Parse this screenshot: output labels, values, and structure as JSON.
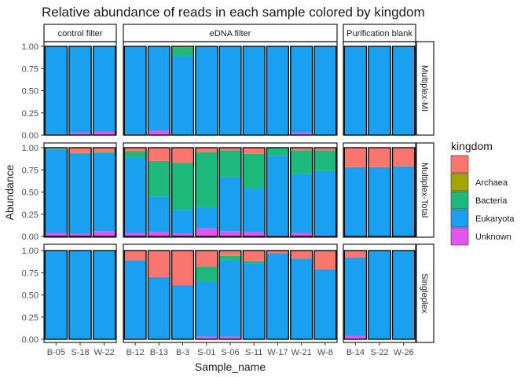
{
  "chart_data": {
    "type": "bar",
    "title": "Relative abundance of reads in each sample colored by kingdom",
    "xlabel": "Sample_name",
    "ylabel": "Abundance",
    "ylim": [
      0,
      1
    ],
    "yticks": [
      "0.00",
      "0.25",
      "0.50",
      "0.75",
      "1.00"
    ],
    "legend": {
      "title": "kingdom",
      "placement": "right",
      "entries": [
        {
          "key": "NA",
          "label": "",
          "color": "#F8766D"
        },
        {
          "key": "Archaea",
          "label": "Archaea",
          "color": "#A3A500"
        },
        {
          "key": "Bacteria",
          "label": "Bacteria",
          "color": "#1DB97A"
        },
        {
          "key": "Eukaryota",
          "label": "Eukaryota",
          "color": "#19A0F0"
        },
        {
          "key": "Unknown",
          "label": "Unknown",
          "color": "#E455F0"
        }
      ]
    },
    "stack_order": [
      "Unknown",
      "Eukaryota",
      "Bacteria",
      "Archaea",
      "NA"
    ],
    "column_facets": [
      {
        "label": "control filter",
        "samples": [
          "B-05",
          "S-18",
          "W-22"
        ]
      },
      {
        "label": "eDNA filter",
        "samples": [
          "B-12",
          "B-13",
          "B-3",
          "S-01",
          "S-06",
          "S-11",
          "W-17",
          "W-21",
          "W-8"
        ]
      },
      {
        "label": "Purification blank",
        "samples": [
          "B-14",
          "S-22",
          "W-26"
        ]
      }
    ],
    "row_facets": [
      {
        "label": "Multiplex-MI",
        "bars": {
          "B-05": {
            "Unknown": 0.01,
            "Eukaryota": 0.99
          },
          "S-18": {
            "Unknown": 0.03,
            "Eukaryota": 0.97
          },
          "W-22": {
            "Unknown": 0.04,
            "Eukaryota": 0.96
          },
          "B-12": {
            "Unknown": 0.01,
            "Eukaryota": 0.99
          },
          "B-13": {
            "Unknown": 0.05,
            "Eukaryota": 0.95
          },
          "B-3": {
            "Unknown": 0.0,
            "Eukaryota": 0.89,
            "Bacteria": 0.1,
            "Archaea": 0.01
          },
          "S-01": {
            "Unknown": 0.0,
            "Eukaryota": 1.0
          },
          "S-06": {
            "Unknown": 0.0,
            "Eukaryota": 1.0
          },
          "S-11": {
            "Unknown": 0.0,
            "Eukaryota": 1.0
          },
          "W-17": {
            "Unknown": 0.0,
            "Eukaryota": 1.0
          },
          "W-21": {
            "Unknown": 0.03,
            "Eukaryota": 0.97
          },
          "W-8": {
            "Unknown": 0.0,
            "Eukaryota": 1.0
          },
          "B-14": {
            "Unknown": 0.0,
            "Eukaryota": 1.0
          },
          "S-22": {
            "Unknown": 0.0,
            "Eukaryota": 1.0
          },
          "W-26": {
            "Unknown": 0.0,
            "Eukaryota": 1.0
          }
        }
      },
      {
        "label": "Multiplex-Total",
        "bars": {
          "B-05": {
            "Unknown": 0.04,
            "Eukaryota": 0.94,
            "Bacteria": 0.01,
            "NA": 0.01
          },
          "S-18": {
            "Unknown": 0.03,
            "Eukaryota": 0.9,
            "Bacteria": 0.01,
            "NA": 0.06
          },
          "W-22": {
            "Unknown": 0.06,
            "Eukaryota": 0.88,
            "Bacteria": 0.01,
            "NA": 0.05
          },
          "B-12": {
            "Unknown": 0.04,
            "Eukaryota": 0.85,
            "Bacteria": 0.07,
            "NA": 0.04
          },
          "B-13": {
            "Unknown": 0.05,
            "Eukaryota": 0.4,
            "Bacteria": 0.4,
            "NA": 0.15
          },
          "B-3": {
            "Unknown": 0.03,
            "Eukaryota": 0.27,
            "Bacteria": 0.53,
            "NA": 0.17
          },
          "S-01": {
            "Unknown": 0.09,
            "Eukaryota": 0.24,
            "Bacteria": 0.62,
            "NA": 0.05
          },
          "S-06": {
            "Unknown": 0.06,
            "Eukaryota": 0.61,
            "Bacteria": 0.3,
            "NA": 0.03
          },
          "S-11": {
            "Unknown": 0.05,
            "Eukaryota": 0.49,
            "Bacteria": 0.39,
            "NA": 0.07
          },
          "W-17": {
            "Unknown": 0.01,
            "Eukaryota": 0.9,
            "Bacteria": 0.09,
            "NA": 0.0
          },
          "W-21": {
            "Unknown": 0.04,
            "Eukaryota": 0.66,
            "Bacteria": 0.27,
            "NA": 0.03
          },
          "W-8": {
            "Unknown": 0.01,
            "Eukaryota": 0.73,
            "Bacteria": 0.23,
            "NA": 0.03
          },
          "B-14": {
            "Unknown": 0.0,
            "Eukaryota": 0.78,
            "Bacteria": 0.0,
            "NA": 0.22
          },
          "S-22": {
            "Unknown": 0.0,
            "Eukaryota": 0.78,
            "Bacteria": 0.0,
            "NA": 0.22
          },
          "W-26": {
            "Unknown": 0.0,
            "Eukaryota": 0.79,
            "Bacteria": 0.0,
            "NA": 0.21
          }
        }
      },
      {
        "label": "Singleplex",
        "bars": {
          "B-05": {
            "Unknown": 0.0,
            "Eukaryota": 1.0
          },
          "S-18": {
            "Unknown": 0.0,
            "Eukaryota": 1.0
          },
          "W-22": {
            "Unknown": 0.0,
            "Eukaryota": 1.0
          },
          "B-12": {
            "Unknown": 0.01,
            "Eukaryota": 0.88,
            "NA": 0.11
          },
          "B-13": {
            "Unknown": 0.0,
            "Eukaryota": 0.7,
            "NA": 0.3
          },
          "B-3": {
            "Unknown": 0.0,
            "Eukaryota": 0.61,
            "NA": 0.39
          },
          "S-01": {
            "Unknown": 0.03,
            "Eukaryota": 0.62,
            "Bacteria": 0.17,
            "NA": 0.18
          },
          "S-06": {
            "Unknown": 0.03,
            "Eukaryota": 0.86,
            "Bacteria": 0.05,
            "NA": 0.06
          },
          "S-11": {
            "Unknown": 0.0,
            "Eukaryota": 0.85,
            "Bacteria": 0.03,
            "NA": 0.12
          },
          "W-17": {
            "Unknown": 0.0,
            "Eukaryota": 0.97,
            "NA": 0.03
          },
          "W-21": {
            "Unknown": 0.0,
            "Eukaryota": 0.91,
            "NA": 0.09
          },
          "W-8": {
            "Unknown": 0.0,
            "Eukaryota": 0.79,
            "NA": 0.21
          },
          "B-14": {
            "Unknown": 0.04,
            "Eukaryota": 0.88,
            "NA": 0.08
          },
          "S-22": {
            "Unknown": 0.0,
            "Eukaryota": 1.0
          },
          "W-26": {
            "Unknown": 0.0,
            "Eukaryota": 1.0
          }
        }
      }
    ]
  }
}
